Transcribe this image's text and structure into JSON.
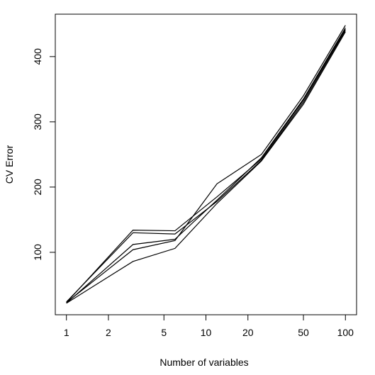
{
  "chart_data": {
    "type": "line",
    "x_label": "Number of variables",
    "y_label": "CV Error",
    "x": [
      1,
      3,
      6,
      12,
      25,
      50,
      100
    ],
    "series": [
      {
        "color": "#000000",
        "values": [
          23,
          134,
          133,
          185,
          243,
          333,
          442
        ]
      },
      {
        "color": "#000000",
        "values": [
          24,
          130,
          128,
          178,
          241,
          330,
          440
        ]
      },
      {
        "color": "#000000",
        "values": [
          22,
          112,
          120,
          180,
          245,
          335,
          444
        ]
      },
      {
        "color": "#000000",
        "values": [
          23,
          104,
          118,
          205,
          250,
          340,
          448
        ]
      },
      {
        "color": "#000000",
        "values": [
          22,
          86,
          106,
          175,
          240,
          327,
          438
        ]
      }
    ],
    "xlog": true,
    "xlim": [
      0.832,
      120.2
    ],
    "xticks": [
      1,
      2,
      5,
      10,
      20,
      50,
      100
    ],
    "ylim": [
      4.3,
      465
    ],
    "yticks": [
      100,
      200,
      300,
      400
    ]
  }
}
